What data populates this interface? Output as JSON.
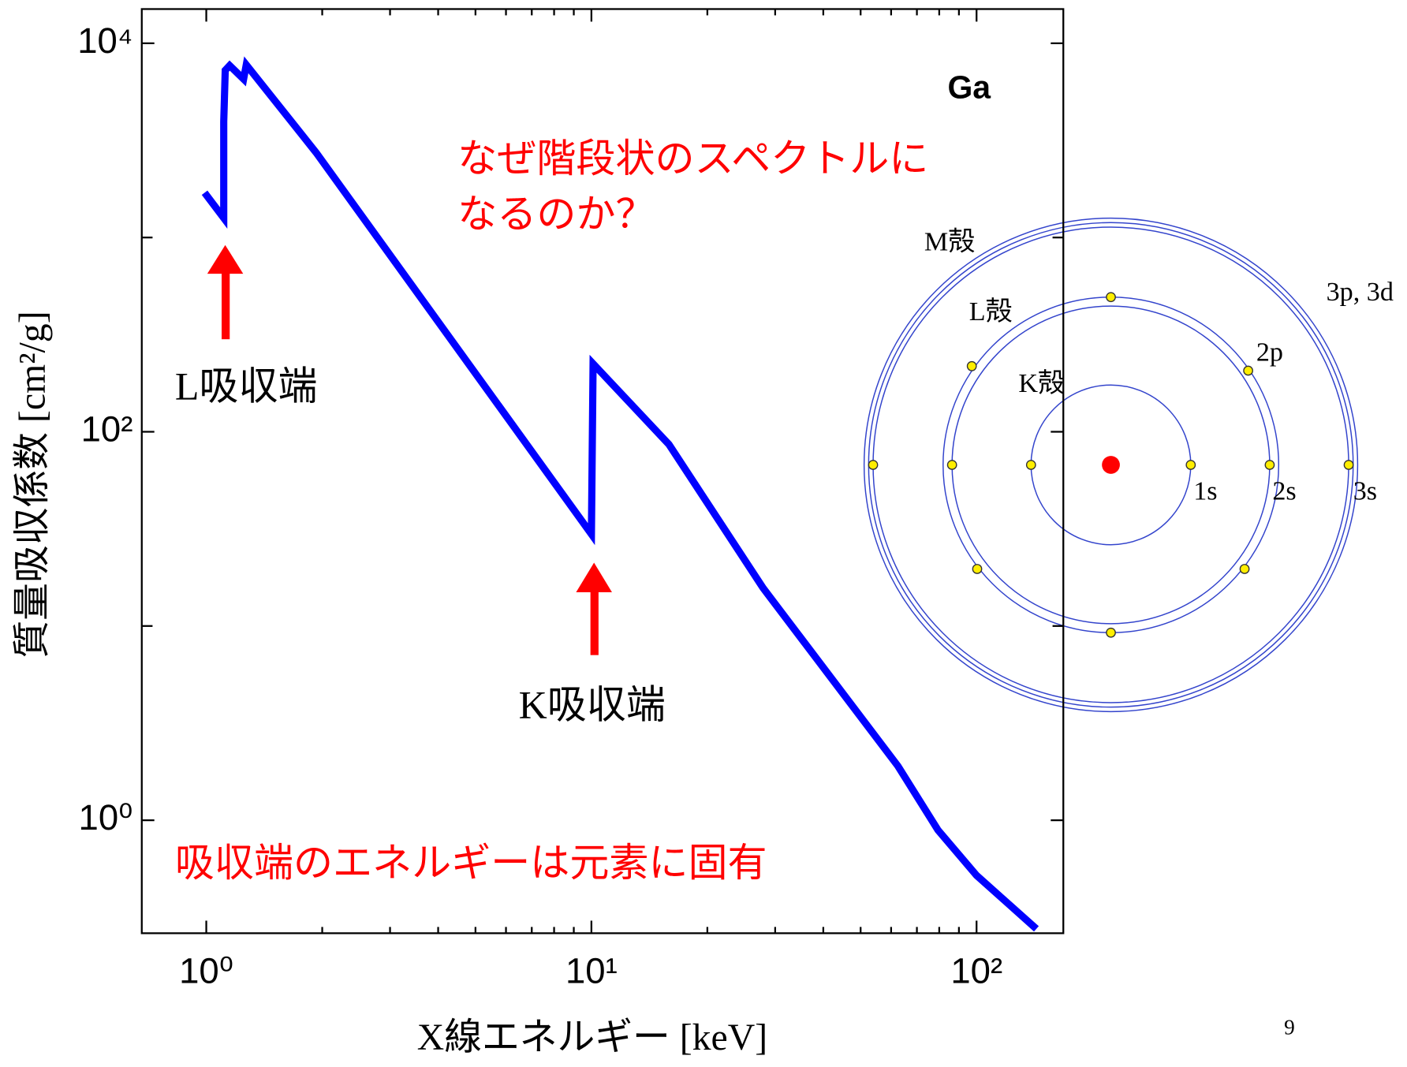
{
  "chart_data": {
    "type": "line",
    "title": "Ga",
    "x_label": "X線エネルギー [keV]",
    "y_label": "質量吸収係数 [cm²/g]",
    "log_x": true,
    "log_y": true,
    "xlim": [
      0.68,
      168
    ],
    "ylim": [
      0.262,
      15000
    ],
    "xticks": [
      {
        "value": 1,
        "label": "10⁰"
      },
      {
        "value": 10,
        "label": "10¹"
      },
      {
        "value": 100,
        "label": "10²"
      }
    ],
    "xminor_ticks": [
      2,
      3,
      4,
      5,
      6,
      7,
      8,
      9,
      20,
      30,
      40,
      50,
      60,
      70,
      80,
      90
    ],
    "yticks": [
      {
        "value": 1,
        "label": "10⁰"
      },
      {
        "value": 100,
        "label": "10²"
      },
      {
        "value": 10000,
        "label": "10⁴"
      }
    ],
    "yminor_ticks": [
      10,
      1000
    ],
    "series": [
      {
        "name": "Ga",
        "color": "#0000ff",
        "x": [
          0.99,
          1.11,
          1.11,
          1.12,
          1.15,
          1.25,
          1.27,
          1.93,
          10.0,
          10.1,
          15.9,
          27.9,
          62.5,
          79.4,
          100,
          143
        ],
        "values": [
          1700,
          1260,
          3960,
          7260,
          7680,
          6540,
          7750,
          2730,
          29.7,
          224,
          86,
          15.7,
          1.9,
          0.89,
          0.52,
          0.276
        ]
      }
    ],
    "annotations": [
      "なぜ階段状のスペクトルに",
      "なるのか？",
      "L吸収端",
      "K吸収端",
      "吸収端のエネルギーは元素に固有"
    ]
  },
  "diagram": {
    "shell_labels": [
      "M殻",
      "L殻",
      "K殻"
    ],
    "orbital_labels": [
      "3p, 3d",
      "2p",
      "1s",
      "2s",
      "3s"
    ]
  },
  "page_number": "9"
}
